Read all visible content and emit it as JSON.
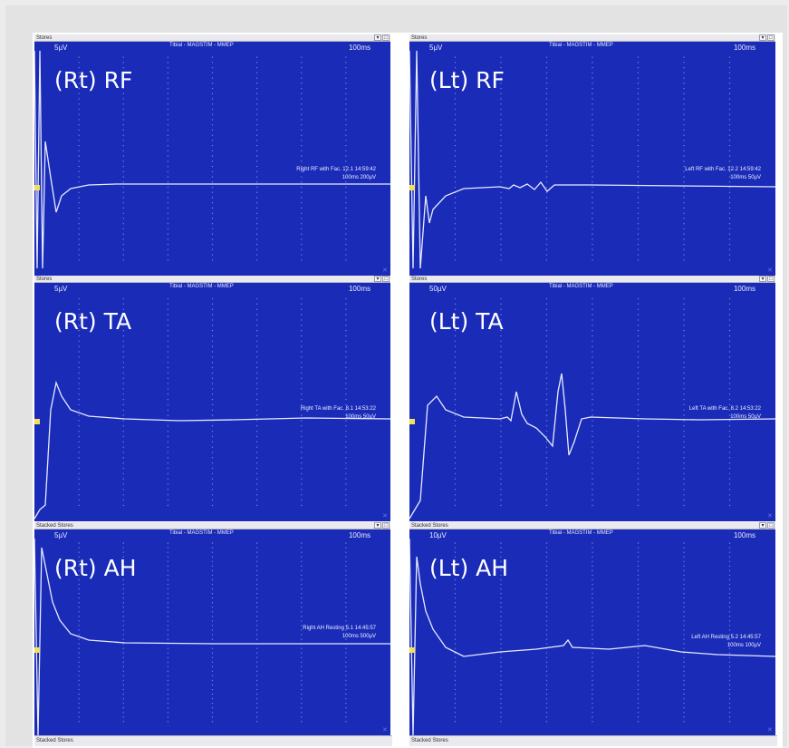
{
  "panels": [
    {
      "key": "rt_rf",
      "window_title": "Stores",
      "scale_left": "5µV",
      "title": "Tibial - MAGSTIM - MMEP",
      "scale_right": "100ms",
      "label": "(Rt) RF",
      "trace_note": "Right RF with Fac. 12.1 14:59:42",
      "scale_note": "100ms 200µV"
    },
    {
      "key": "lt_rf",
      "window_title": "Stores",
      "scale_left": "5µV",
      "title": "Tibial - MAGSTIM - MMEP",
      "scale_right": "100ms",
      "label": "(Lt) RF",
      "trace_note": "Left RF with Fac. 12.2 14:59:42",
      "scale_note": "100ms 50µV"
    },
    {
      "key": "rt_ta",
      "window_title": "Stores",
      "scale_left": "5µV",
      "title": "Tibial - MAGSTIM - MMEP",
      "scale_right": "100ms",
      "label": "(Rt) TA",
      "trace_note": "Right TA with Fac. 8.1 14:53:22",
      "scale_note": "100ms 50µV"
    },
    {
      "key": "lt_ta",
      "window_title": "Stores",
      "scale_left": "50µV",
      "title": "Tibial - MAGSTIM - MMEP",
      "scale_right": "100ms",
      "label": "(Lt) TA",
      "trace_note": "Left TA with Fac. 8.2 14:53:22",
      "scale_note": "100ms 50µV"
    },
    {
      "key": "rt_ah",
      "window_title": "Stacked Stores",
      "scale_left": "5µV",
      "title": "Tibial - MAGSTIM - MMEP",
      "scale_right": "100ms",
      "label": "(Rt) AH",
      "trace_note": "Right AH Resting 5.1 14:45:57",
      "scale_note": "100ms 500µV"
    },
    {
      "key": "lt_ah",
      "window_title": "Stacked Stores",
      "scale_left": "10µV",
      "title": "Tibial - MAGSTIM - MMEP",
      "scale_right": "100ms",
      "label": "(Lt) AH",
      "trace_note": "Left AH Resting 5.2 14:45:57",
      "scale_note": "100ms 100µV"
    }
  ],
  "footer": {
    "left": "Stacked Stores",
    "right": "Stacked Stores"
  },
  "colors": {
    "plot_bg": "#1a2bb8",
    "trace": "#e6eaff",
    "grid_dot": "#6f7fe6",
    "marker": "#f2e05a"
  },
  "icons": [
    "window-minimize-icon",
    "window-restore-icon",
    "scroll-down-icon",
    "chevron-left-icon",
    "chevron-right-icon"
  ]
}
